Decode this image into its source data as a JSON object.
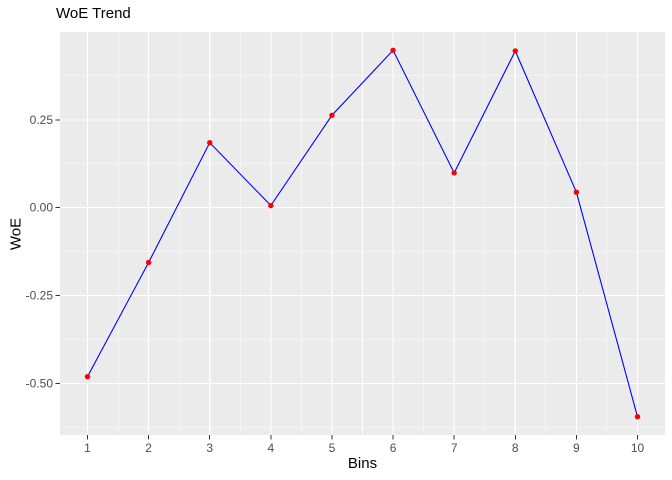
{
  "window": {
    "background": "#FFFFFF"
  },
  "chart_data": {
    "type": "line",
    "title": "WoE Trend",
    "xlabel": "Bins",
    "ylabel": "WoE",
    "x": [
      1,
      2,
      3,
      4,
      5,
      6,
      7,
      8,
      9,
      10
    ],
    "series": [
      {
        "name": "WoE",
        "values": [
          -0.481,
          -0.156,
          0.185,
          0.006,
          0.263,
          0.448,
          0.099,
          0.446,
          0.044,
          -0.595
        ]
      }
    ],
    "x_tick_labels": [
      "1",
      "2",
      "3",
      "4",
      "5",
      "6",
      "7",
      "8",
      "9",
      "10"
    ],
    "y_ticks": [
      {
        "value": 0.25,
        "label": "0.25"
      },
      {
        "value": 0.0,
        "label": "0.00"
      },
      {
        "value": -0.25,
        "label": "-0.25"
      },
      {
        "value": -0.5,
        "label": "-0.50"
      }
    ],
    "y_minor_breaks": [
      0.375,
      0.125,
      -0.125,
      -0.375,
      -0.625
    ],
    "x_minor_breaks": [
      1.5,
      2.5,
      3.5,
      4.5,
      5.5,
      6.5,
      7.5,
      8.5,
      9.5
    ],
    "xlim": [
      0.55,
      10.45
    ],
    "ylim": [
      -0.647,
      0.5
    ],
    "grid": "on",
    "legend": "none",
    "style": {
      "panel_bg": "#EBEBEB",
      "grid_color": "#FFFFFF",
      "line_color": "#0000FF",
      "point_color": "#FF0000",
      "tick_text_color": "#4D4D4D",
      "tick_mark_color": "#333333",
      "title_color": "#000000",
      "axis_title_color": "#000000"
    }
  }
}
